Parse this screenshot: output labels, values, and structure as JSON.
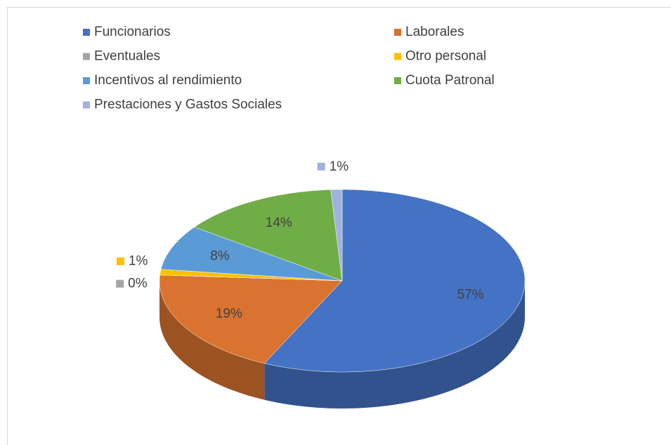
{
  "chart_data": {
    "type": "pie",
    "categories": [
      "Funcionarios",
      "Laborales",
      "Eventuales",
      "Otro personal",
      "Incentivos al rendimiento",
      "Cuota Patronal",
      "Prestaciones y Gastos Sociales"
    ],
    "values": [
      57,
      19,
      0,
      1,
      8,
      14,
      1
    ],
    "value_labels": [
      "57%",
      "19%",
      "0%",
      "1%",
      "8%",
      "14%",
      "1%"
    ],
    "colors": [
      "#4472c4",
      "#d9732f",
      "#a5a5a5",
      "#ffc000",
      "#5b9bd5",
      "#70ad47",
      "#a3b1de"
    ],
    "legend": "top"
  }
}
